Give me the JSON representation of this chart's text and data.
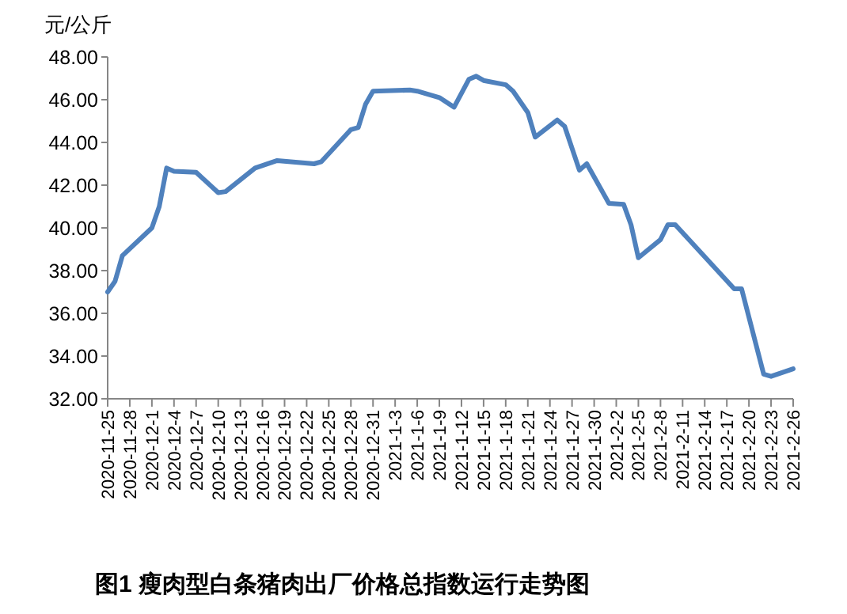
{
  "chart_data": {
    "type": "line",
    "title": "图1 瘦肉型白条猪肉出厂价格总指数运行走势图",
    "ylabel": "元/公斤",
    "series": [
      {
        "color": "#4f81bd",
        "x": [
          "2020-11-25",
          "2020-11-26",
          "2020-11-27",
          "2020-12-01",
          "2020-12-02",
          "2020-12-03",
          "2020-12-04",
          "2020-12-07",
          "2020-12-10",
          "2020-12-11",
          "2020-12-15",
          "2020-12-18",
          "2020-12-23",
          "2020-12-24",
          "2020-12-28",
          "2020-12-29",
          "2020-12-30",
          "2020-12-31",
          "2021-01-05",
          "2021-01-06",
          "2021-01-09",
          "2021-01-11",
          "2021-01-13",
          "2021-01-14",
          "2021-01-15",
          "2021-01-18",
          "2021-01-19",
          "2021-01-21",
          "2021-01-22",
          "2021-01-25",
          "2021-01-26",
          "2021-01-28",
          "2021-01-29",
          "2021-02-01",
          "2021-02-03",
          "2021-02-04",
          "2021-02-05",
          "2021-02-08",
          "2021-02-09",
          "2021-02-10",
          "2021-02-18",
          "2021-02-19",
          "2021-02-22",
          "2021-02-23",
          "2021-02-26"
        ],
        "values": [
          37.0,
          37.5,
          38.7,
          40.0,
          41.0,
          42.8,
          42.65,
          42.6,
          41.65,
          41.7,
          42.8,
          43.15,
          43.0,
          43.1,
          44.6,
          44.7,
          45.8,
          46.4,
          46.45,
          46.4,
          46.1,
          45.65,
          46.95,
          47.1,
          46.9,
          46.7,
          46.4,
          45.4,
          44.25,
          45.05,
          44.75,
          42.7,
          43.0,
          41.15,
          41.1,
          40.15,
          38.6,
          39.45,
          40.15,
          40.15,
          37.15,
          37.15,
          33.15,
          33.05,
          33.4
        ]
      }
    ],
    "xlim": [
      "2020-11-25",
      "2021-02-26"
    ],
    "xticks": [
      {
        "value": "2020-11-25",
        "label": "2020-11-25"
      },
      {
        "value": "2020-11-28",
        "label": "2020-11-28"
      },
      {
        "value": "2020-12-01",
        "label": "2020-12-1"
      },
      {
        "value": "2020-12-04",
        "label": "2020-12-4"
      },
      {
        "value": "2020-12-07",
        "label": "2020-12-7"
      },
      {
        "value": "2020-12-10",
        "label": "2020-12-10"
      },
      {
        "value": "2020-12-13",
        "label": "2020-12-13"
      },
      {
        "value": "2020-12-16",
        "label": "2020-12-16"
      },
      {
        "value": "2020-12-19",
        "label": "2020-12-19"
      },
      {
        "value": "2020-12-22",
        "label": "2020-12-22"
      },
      {
        "value": "2020-12-25",
        "label": "2020-12-25"
      },
      {
        "value": "2020-12-28",
        "label": "2020-12-28"
      },
      {
        "value": "2020-12-31",
        "label": "2020-12-31"
      },
      {
        "value": "2021-01-03",
        "label": "2021-1-3"
      },
      {
        "value": "2021-01-06",
        "label": "2021-1-6"
      },
      {
        "value": "2021-01-09",
        "label": "2021-1-9"
      },
      {
        "value": "2021-01-12",
        "label": "2021-1-12"
      },
      {
        "value": "2021-01-15",
        "label": "2021-1-15"
      },
      {
        "value": "2021-01-18",
        "label": "2021-1-18"
      },
      {
        "value": "2021-01-21",
        "label": "2021-1-21"
      },
      {
        "value": "2021-01-24",
        "label": "2021-1-24"
      },
      {
        "value": "2021-01-27",
        "label": "2021-1-27"
      },
      {
        "value": "2021-01-30",
        "label": "2021-1-30"
      },
      {
        "value": "2021-02-02",
        "label": "2021-2-2"
      },
      {
        "value": "2021-02-05",
        "label": "2021-2-5"
      },
      {
        "value": "2021-02-08",
        "label": "2021-2-8"
      },
      {
        "value": "2021-02-11",
        "label": "2021-2-11"
      },
      {
        "value": "2021-02-14",
        "label": "2021-2-14"
      },
      {
        "value": "2021-02-17",
        "label": "2021-2-17"
      },
      {
        "value": "2021-02-20",
        "label": "2021-2-20"
      },
      {
        "value": "2021-02-23",
        "label": "2021-2-23"
      },
      {
        "value": "2021-02-26",
        "label": "2021-2-26"
      }
    ],
    "ylim": [
      32,
      48
    ],
    "yticks": [
      {
        "value": 32,
        "label": "32.00"
      },
      {
        "value": 34,
        "label": "34.00"
      },
      {
        "value": 36,
        "label": "36.00"
      },
      {
        "value": 38,
        "label": "38.00"
      },
      {
        "value": 40,
        "label": "40.00"
      },
      {
        "value": 42,
        "label": "42.00"
      },
      {
        "value": 44,
        "label": "44.00"
      },
      {
        "value": 46,
        "label": "46.00"
      },
      {
        "value": 48,
        "label": "48.00"
      }
    ]
  }
}
